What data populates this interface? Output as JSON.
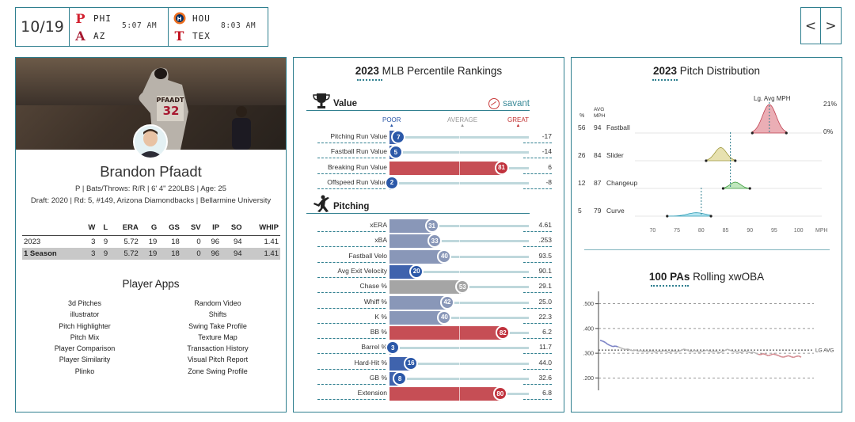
{
  "scoreboard": {
    "date": "10/19",
    "games": [
      {
        "away": "PHI",
        "home": "AZ",
        "time": "5:07 AM",
        "away_logo": "P",
        "home_logo": "A",
        "away_color": "#d2202f",
        "home_color": "#a71930"
      },
      {
        "away": "HOU",
        "home": "TEX",
        "time": "8:03 AM",
        "away_logo": "H",
        "home_logo": "T",
        "away_color": "#eb6e1f",
        "home_color": "#c0111f"
      }
    ],
    "nav_prev": "<",
    "nav_next": ">"
  },
  "player": {
    "name": "Brandon Pfaadt",
    "jersey_name": "PFAADT",
    "jersey_number": "32",
    "bio_line": "P | Bats/Throws: R/R | 6' 4\" 220LBS | Age: 25",
    "draft_line": "Draft: 2020 | Rd: 5, #149, Arizona Diamondbacks | Bellarmine University"
  },
  "stats_table": {
    "headers": [
      "",
      "W",
      "L",
      "ERA",
      "G",
      "GS",
      "SV",
      "IP",
      "SO",
      "WHIP"
    ],
    "rows": [
      [
        "2023",
        "3",
        "9",
        "5.72",
        "19",
        "18",
        "0",
        "96",
        "94",
        "1.41"
      ],
      [
        "1 Season",
        "3",
        "9",
        "5.72",
        "19",
        "18",
        "0",
        "96",
        "94",
        "1.41"
      ]
    ]
  },
  "player_apps": {
    "title": "Player Apps",
    "left": [
      "3d Pitches",
      "illustrator",
      "Pitch Highlighter",
      "Pitch Mix",
      "Player Comparison",
      "Player Similarity",
      "Plinko"
    ],
    "right": [
      "Random Video",
      "Shifts",
      "Swing Take Profile",
      "Texture Map",
      "Transaction History",
      "Visual Pitch Report",
      "Zone Swing Profile"
    ]
  },
  "percentile": {
    "title_bold": "2023",
    "title_rest": "MLB Percentile Rankings",
    "value_section": "Value",
    "pitching_section": "Pitching",
    "savant": "savant",
    "scale": {
      "poor": "POOR",
      "average": "AVERAGE",
      "great": "GREAT"
    },
    "value_rows": [
      {
        "label": "Pitching Run Value",
        "pct": 7,
        "value": "-17"
      },
      {
        "label": "Fastball Run Value",
        "pct": 5,
        "value": "-14"
      },
      {
        "label": "Breaking Run Value",
        "pct": 81,
        "value": "6"
      },
      {
        "label": "Offspeed Run Value",
        "pct": 2,
        "value": "-8"
      }
    ],
    "pitching_rows": [
      {
        "label": "xERA",
        "pct": 31,
        "value": "4.61"
      },
      {
        "label": "xBA",
        "pct": 33,
        "value": ".253"
      },
      {
        "label": "Fastball Velo",
        "pct": 40,
        "value": "93.5"
      },
      {
        "label": "Avg Exit Velocity",
        "pct": 20,
        "value": "90.1"
      },
      {
        "label": "Chase %",
        "pct": 53,
        "value": "29.1"
      },
      {
        "label": "Whiff %",
        "pct": 42,
        "value": "25.0"
      },
      {
        "label": "K %",
        "pct": 40,
        "value": "22.3"
      },
      {
        "label": "BB %",
        "pct": 82,
        "value": "6.2"
      },
      {
        "label": "Barrel %",
        "pct": 3,
        "value": "11.7"
      },
      {
        "label": "Hard-Hit %",
        "pct": 16,
        "value": "44.0"
      },
      {
        "label": "GB %",
        "pct": 8,
        "value": "32.6"
      },
      {
        "label": "Extension",
        "pct": 80,
        "value": "6.8"
      }
    ]
  },
  "pitch_dist": {
    "title_bold": "2023",
    "title_rest": "Pitch Distribution",
    "lg_label": "Lg. Avg MPH",
    "pct_header": "%",
    "avg_header_1": "AVG",
    "avg_header_2": "MPH",
    "scale_top": "21%",
    "scale_bottom": "0%",
    "x_ticks": [
      "70",
      "75",
      "80",
      "85",
      "90",
      "95",
      "100"
    ],
    "x_unit": "MPH",
    "pitches": [
      {
        "pct": "56",
        "mph": "94",
        "name": "Fastball",
        "lo": 90.5,
        "hi": 97.5,
        "peak": 94,
        "lg": 94,
        "height": 1.0,
        "color": "#e8a0a8",
        "stroke": "#c04050"
      },
      {
        "pct": "26",
        "mph": "84",
        "name": "Slider",
        "lo": 81,
        "hi": 87,
        "peak": 84,
        "lg": 86,
        "height": 0.46,
        "color": "#e3dca2",
        "stroke": "#a09a40"
      },
      {
        "pct": "12",
        "mph": "87",
        "name": "Changeup",
        "lo": 84.5,
        "hi": 90,
        "peak": 87,
        "lg": 86,
        "height": 0.22,
        "color": "#b5e3b3",
        "stroke": "#3a9a3a"
      },
      {
        "pct": "5",
        "mph": "79",
        "name": "Curve",
        "lo": 73,
        "hi": 82,
        "peak": 79,
        "lg": 80,
        "height": 0.12,
        "color": "#a8e2ee",
        "stroke": "#2a9ab4"
      }
    ]
  },
  "xwoba": {
    "title_bold": "100 PAs",
    "title_rest": "Rolling xwOBA",
    "y_ticks": [
      ".500",
      ".400",
      ".300",
      ".200"
    ],
    "lg_label": "LG AVG",
    "lg_value": 0.313,
    "y_min": 0.15,
    "y_max": 0.55,
    "series": [
      0.352,
      0.349,
      0.344,
      0.336,
      0.331,
      0.327,
      0.329,
      0.326,
      0.322,
      0.318,
      0.315,
      0.317,
      0.312,
      0.31,
      0.313,
      0.308,
      0.311,
      0.306,
      0.309,
      0.305,
      0.31,
      0.307,
      0.304,
      0.309,
      0.306,
      0.311,
      0.308,
      0.303,
      0.307,
      0.31,
      0.305,
      0.308,
      0.312,
      0.317,
      0.313,
      0.309,
      0.306,
      0.311,
      0.308,
      0.304,
      0.307,
      0.31,
      0.312,
      0.308,
      0.305,
      0.309,
      0.306,
      0.302,
      0.307,
      0.311,
      0.316,
      0.312,
      0.309,
      0.305,
      0.307,
      0.303,
      0.306,
      0.31,
      0.306,
      0.302,
      0.305,
      0.301,
      0.296,
      0.294,
      0.298,
      0.295,
      0.29,
      0.293,
      0.297,
      0.294,
      0.291,
      0.286,
      0.284,
      0.287,
      0.29,
      0.286,
      0.283,
      0.287,
      0.289,
      0.284
    ]
  }
}
